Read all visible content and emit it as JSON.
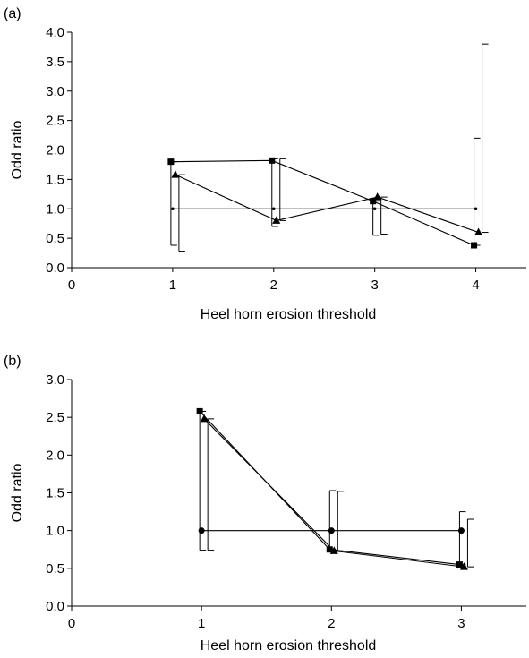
{
  "chart_data": [
    {
      "panel_label": "(a)",
      "type": "line",
      "xlabel": "Heel horn erosion threshold",
      "ylabel": "Odd ratio",
      "xlim": [
        0,
        4.5
      ],
      "ylim": [
        0,
        4.0
      ],
      "xticks": [
        0,
        1,
        2,
        3,
        4
      ],
      "yticks": [
        0.0,
        0.5,
        1.0,
        1.5,
        2.0,
        2.5,
        3.0,
        3.5,
        4.0
      ],
      "ytick_labels": [
        "0.0",
        "0.5",
        "1.0",
        "1.5",
        "2.0",
        "2.5",
        "3.0",
        "3.5",
        "4.0"
      ],
      "grid": false,
      "series": [
        {
          "marker": "circle",
          "x": [
            1,
            2,
            3,
            4
          ],
          "values": [
            1.0,
            1.0,
            1.0,
            1.0
          ]
        },
        {
          "marker": "square",
          "x": [
            1,
            2,
            3,
            4
          ],
          "values": [
            1.8,
            1.82,
            1.13,
            0.38
          ],
          "ci_low": [
            0.38,
            0.7,
            0.55,
            0.38
          ],
          "ci_high": [
            1.8,
            1.85,
            1.13,
            2.2
          ]
        },
        {
          "marker": "triangle",
          "x": [
            1,
            2,
            3,
            4
          ],
          "values": [
            1.58,
            0.8,
            1.2,
            0.6
          ],
          "ci_low": [
            0.28,
            0.8,
            0.57,
            0.6
          ],
          "ci_high": [
            1.58,
            1.85,
            1.2,
            3.8
          ]
        }
      ]
    },
    {
      "panel_label": "(b)",
      "type": "line",
      "xlabel": "Heel horn erosion threshold",
      "ylabel": "Odd ratio",
      "xlim": [
        0,
        3.5
      ],
      "ylim": [
        0,
        3.0
      ],
      "xticks": [
        0,
        1,
        2,
        3
      ],
      "yticks": [
        0.0,
        0.5,
        1.0,
        1.5,
        2.0,
        2.5,
        3.0
      ],
      "ytick_labels": [
        "0.0",
        "0.5",
        "1.0",
        "1.5",
        "2.0",
        "2.5",
        "3.0"
      ],
      "grid": false,
      "series": [
        {
          "marker": "circle",
          "x": [
            1,
            2,
            3
          ],
          "values": [
            1.0,
            1.0,
            1.0
          ]
        },
        {
          "marker": "square",
          "x": [
            1,
            2,
            3
          ],
          "values": [
            2.58,
            0.75,
            0.55
          ],
          "ci_low": [
            0.74,
            0.75,
            0.55
          ],
          "ci_high": [
            2.58,
            1.53,
            1.25
          ]
        },
        {
          "marker": "triangle",
          "x": [
            1,
            2,
            3
          ],
          "values": [
            2.48,
            0.73,
            0.52
          ],
          "ci_low": [
            0.74,
            0.73,
            0.52
          ],
          "ci_high": [
            2.48,
            1.52,
            1.15
          ]
        }
      ]
    }
  ]
}
